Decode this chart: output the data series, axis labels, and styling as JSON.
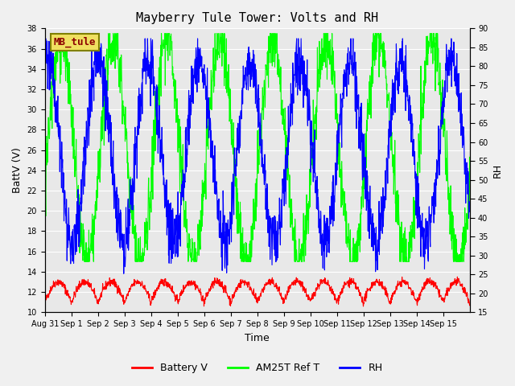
{
  "title": "Mayberry Tule Tower: Volts and RH",
  "xlabel": "Time",
  "ylabel_left": "BattV (V)",
  "ylabel_right": "RH",
  "station_label": "MB_tule",
  "ylim_left": [
    10,
    38
  ],
  "ylim_right": [
    15,
    90
  ],
  "yticks_left": [
    10,
    12,
    14,
    16,
    18,
    20,
    22,
    24,
    26,
    28,
    30,
    32,
    34,
    36,
    38
  ],
  "yticks_right": [
    15,
    20,
    25,
    30,
    35,
    40,
    45,
    50,
    55,
    60,
    65,
    70,
    75,
    80,
    85,
    90
  ],
  "xtick_labels": [
    "Aug 31",
    "Sep 1",
    "Sep 2",
    "Sep 3",
    "Sep 4",
    "Sep 5",
    "Sep 6",
    "Sep 7",
    "Sep 8",
    "Sep 9",
    "Sep 10",
    "Sep 11",
    "Sep 12",
    "Sep 13",
    "Sep 14",
    "Sep 15"
  ],
  "n_days": 16,
  "background_color": "#e8e8e8",
  "plot_bg_color": "#f0f0f0",
  "grid_color": "white",
  "line_color_battery": "red",
  "line_color_am25t": "lime",
  "line_color_rh": "blue",
  "legend_labels": [
    "Battery V",
    "AM25T Ref T",
    "RH"
  ],
  "title_fontsize": 11,
  "label_fontsize": 9,
  "tick_fontsize": 7
}
